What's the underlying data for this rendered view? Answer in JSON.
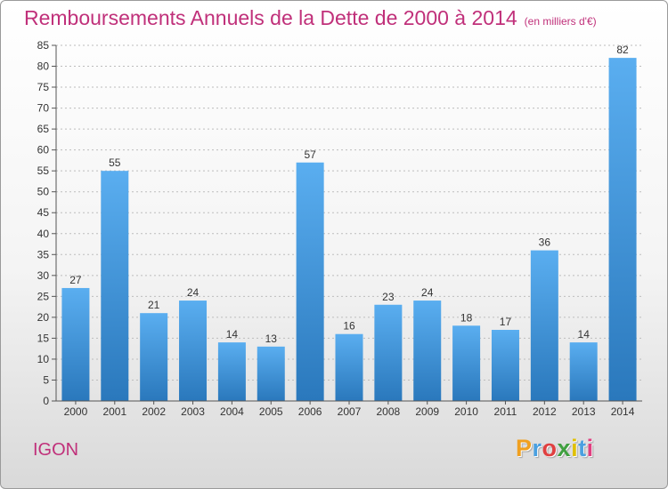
{
  "chart_data": {
    "type": "bar",
    "title": "Remboursements Annuels de la Dette de 2000 à 2014",
    "subtitle": "(en milliers d'€)",
    "categories": [
      "2000",
      "2001",
      "2002",
      "2003",
      "2004",
      "2005",
      "2006",
      "2007",
      "2008",
      "2009",
      "2010",
      "2011",
      "2012",
      "2013",
      "2014"
    ],
    "values": [
      27,
      55,
      21,
      24,
      14,
      13,
      57,
      16,
      23,
      24,
      18,
      17,
      36,
      14,
      82
    ],
    "ylim": [
      0,
      85
    ],
    "yticks": [
      0,
      5,
      10,
      15,
      20,
      25,
      30,
      35,
      40,
      45,
      50,
      55,
      60,
      65,
      70,
      75,
      80,
      85
    ],
    "grid": "horizontal-dashed",
    "bar_color": "#4a9fdc"
  },
  "commune": "IGON",
  "logo": {
    "letters": [
      "P",
      "r",
      "o",
      "x",
      "i",
      "t",
      "i"
    ],
    "colors": [
      "#f0a020",
      "#4aa0e0",
      "#e04040",
      "#40a040",
      "#e0c000",
      "#4aa0e0",
      "#e04080"
    ]
  }
}
